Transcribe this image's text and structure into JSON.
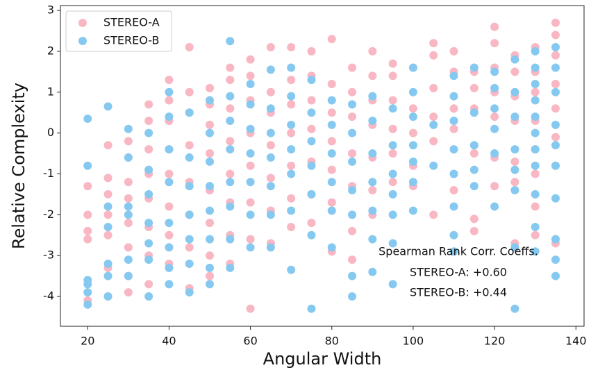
{
  "chart_data": {
    "type": "scatter",
    "x_label": "Angular Width",
    "y_label": "Relative Complexity",
    "xlim": [
      13.3,
      142
    ],
    "ylim": [
      -4.73,
      3.12
    ],
    "xticks": [
      20,
      40,
      60,
      80,
      100,
      120,
      140
    ],
    "yticks": [
      -4,
      -3,
      -2,
      -1,
      0,
      1,
      2,
      3
    ],
    "legend": "upper left",
    "annotations": [
      "Spearman Rank Corr. Coeffs.",
      "STEREO-A: +0.60",
      "STEREO-B: +0.44"
    ],
    "series": [
      {
        "name": "STEREO-A",
        "color": "#f9b6c3",
        "x": [
          20,
          20,
          20,
          20,
          20,
          25,
          25,
          25,
          25,
          25,
          25,
          25,
          30,
          30,
          30,
          30,
          30,
          30,
          30,
          30,
          35,
          35,
          35,
          35,
          35,
          35,
          35,
          35,
          40,
          40,
          40,
          40,
          40,
          40,
          40,
          40,
          45,
          45,
          45,
          45,
          45,
          45,
          45,
          45,
          50,
          50,
          50,
          50,
          50,
          50,
          50,
          50,
          55,
          55,
          55,
          55,
          55,
          55,
          55,
          55,
          60,
          60,
          60,
          60,
          60,
          60,
          60,
          60,
          65,
          65,
          65,
          65,
          65,
          65,
          65,
          70,
          70,
          70,
          70,
          70,
          70,
          70,
          75,
          75,
          75,
          75,
          75,
          75,
          75,
          80,
          80,
          80,
          80,
          80,
          80,
          80,
          85,
          85,
          85,
          85,
          85,
          85,
          85,
          90,
          90,
          90,
          90,
          90,
          90,
          90,
          95,
          95,
          95,
          95,
          95,
          95,
          100,
          100,
          100,
          100,
          100,
          105,
          105,
          105,
          105,
          105,
          105,
          110,
          110,
          110,
          110,
          110,
          110,
          115,
          115,
          115,
          115,
          115,
          115,
          120,
          120,
          120,
          120,
          120,
          120,
          120,
          125,
          125,
          125,
          125,
          125,
          125,
          125,
          130,
          130,
          130,
          130,
          130,
          130,
          130,
          130,
          135,
          135,
          135,
          135,
          135,
          135,
          135,
          135
        ],
        "values": [
          -1.3,
          -2.0,
          -2.4,
          -2.6,
          -4.1,
          -0.3,
          -1.1,
          -1.5,
          -2.0,
          -2.5,
          -3.3,
          -4.0,
          -0.2,
          -0.6,
          -1.2,
          -1.6,
          -2.2,
          -2.8,
          -3.5,
          -3.9,
          0.7,
          0.3,
          -0.4,
          -1.0,
          -1.6,
          -2.3,
          -3.0,
          -3.7,
          1.3,
          0.8,
          0.3,
          -0.4,
          -1.0,
          -1.8,
          -2.5,
          -3.2,
          2.1,
          1.0,
          0.5,
          -0.3,
          -1.2,
          -2.0,
          -2.8,
          -3.8,
          1.1,
          0.7,
          0.2,
          -0.5,
          -1.4,
          -2.2,
          -3.0,
          -3.5,
          1.6,
          1.3,
          0.6,
          -0.2,
          -1.0,
          -1.7,
          -2.5,
          -3.2,
          1.8,
          1.4,
          0.8,
          0.0,
          -0.8,
          -1.7,
          -2.6,
          -4.3,
          2.1,
          1.0,
          0.5,
          -0.3,
          -1.1,
          -1.9,
          -2.7,
          2.1,
          1.3,
          0.7,
          0.0,
          -0.8,
          -1.6,
          -2.3,
          2.0,
          1.4,
          0.8,
          0.1,
          -0.7,
          -1.5,
          -2.2,
          2.3,
          1.2,
          0.5,
          -0.2,
          -0.9,
          -1.7,
          -2.9,
          1.6,
          1.0,
          0.4,
          -0.5,
          -1.3,
          -2.4,
          -3.1,
          2.0,
          1.4,
          0.8,
          0.2,
          -0.6,
          -1.4,
          -2.0,
          1.7,
          1.4,
          0.8,
          0.1,
          -0.5,
          -1.2,
          1.6,
          0.6,
          0.0,
          -0.8,
          -1.3,
          2.2,
          1.9,
          1.1,
          0.4,
          -0.2,
          -2.0,
          2.0,
          1.5,
          0.6,
          0.1,
          -1.0,
          -1.4,
          1.5,
          1.1,
          0.6,
          -0.5,
          -2.1,
          -2.4,
          2.6,
          2.2,
          1.6,
          1.0,
          0.4,
          -0.6,
          -1.3,
          1.9,
          1.5,
          0.9,
          0.3,
          -0.7,
          -1.2,
          -2.7,
          2.1,
          1.5,
          1.0,
          0.3,
          -0.4,
          -1.0,
          -1.8,
          -2.5,
          2.7,
          2.4,
          1.9,
          1.2,
          0.6,
          -0.1,
          -0.8,
          -2.7
        ]
      },
      {
        "name": "STEREO-B",
        "color": "#86c9f0",
        "x": [
          20,
          20,
          20,
          20,
          20,
          20,
          25,
          25,
          25,
          25,
          25,
          25,
          30,
          30,
          30,
          30,
          30,
          30,
          35,
          35,
          35,
          35,
          35,
          35,
          35,
          40,
          40,
          40,
          40,
          40,
          40,
          40,
          40,
          45,
          45,
          45,
          45,
          45,
          45,
          45,
          50,
          50,
          50,
          50,
          50,
          50,
          50,
          50,
          55,
          55,
          55,
          55,
          55,
          55,
          55,
          55,
          60,
          60,
          60,
          60,
          60,
          60,
          60,
          65,
          65,
          65,
          65,
          65,
          65,
          65,
          70,
          70,
          70,
          70,
          70,
          70,
          70,
          75,
          75,
          75,
          75,
          75,
          75,
          75,
          80,
          80,
          80,
          80,
          80,
          80,
          85,
          85,
          85,
          85,
          85,
          85,
          85,
          90,
          90,
          90,
          90,
          90,
          90,
          90,
          95,
          95,
          95,
          95,
          95,
          95,
          95,
          100,
          100,
          100,
          100,
          100,
          100,
          100,
          105,
          105,
          110,
          110,
          110,
          110,
          110,
          110,
          110,
          110,
          115,
          115,
          115,
          115,
          115,
          120,
          120,
          120,
          120,
          120,
          120,
          125,
          125,
          125,
          125,
          125,
          125,
          125,
          125,
          130,
          130,
          130,
          130,
          130,
          130,
          130,
          130,
          130,
          130,
          130,
          135,
          135,
          135,
          135,
          135,
          135,
          135,
          135,
          135,
          135
        ],
        "values": [
          0.35,
          -0.8,
          -3.6,
          -3.7,
          -3.9,
          -4.2,
          0.65,
          -1.8,
          -2.3,
          -3.2,
          -3.5,
          -4.0,
          0.1,
          -0.6,
          -1.8,
          -2.0,
          -3.1,
          -3.5,
          0.0,
          -0.9,
          -1.5,
          -2.2,
          -2.7,
          -3.1,
          -4.0,
          1.0,
          0.4,
          -0.4,
          -1.2,
          -2.2,
          -2.8,
          -3.3,
          -3.7,
          0.5,
          -0.6,
          -1.3,
          -2.0,
          -2.6,
          -3.2,
          -3.9,
          0.8,
          0.0,
          -0.7,
          -1.3,
          -1.9,
          -2.6,
          -3.3,
          -3.7,
          2.25,
          0.9,
          0.3,
          -0.4,
          -1.2,
          -1.8,
          -2.6,
          -3.3,
          1.2,
          0.7,
          0.1,
          -0.5,
          -1.2,
          -2.0,
          -2.8,
          1.55,
          0.6,
          0.0,
          -0.6,
          -1.3,
          -2.0,
          -2.8,
          1.6,
          0.9,
          0.2,
          -0.4,
          -1.0,
          -1.9,
          -3.35,
          1.3,
          0.5,
          -0.2,
          -0.8,
          -1.5,
          -2.5,
          -4.3,
          0.8,
          0.2,
          -0.5,
          -1.2,
          -1.9,
          -2.8,
          0.7,
          0.0,
          -0.7,
          -1.4,
          -2.0,
          -3.5,
          -4.0,
          0.9,
          0.3,
          -0.5,
          -1.2,
          -1.9,
          -2.6,
          -3.4,
          0.6,
          -0.3,
          -1.0,
          -1.5,
          -2.0,
          -2.7,
          -3.7,
          1.6,
          1.0,
          0.4,
          -0.3,
          -0.7,
          -1.2,
          -1.9,
          0.2,
          -0.8,
          1.4,
          0.9,
          0.3,
          -0.4,
          -1.0,
          -1.8,
          -2.5,
          -2.9,
          1.6,
          0.5,
          -0.3,
          -0.9,
          -1.3,
          1.5,
          1.1,
          0.6,
          0.1,
          -0.5,
          -1.8,
          1.8,
          1.0,
          0.4,
          -0.4,
          -0.9,
          -1.4,
          -2.8,
          -4.3,
          2.0,
          1.6,
          1.2,
          0.8,
          0.4,
          0.0,
          -0.4,
          -0.8,
          -1.5,
          -2.3,
          -2.9,
          2.1,
          1.6,
          1.0,
          0.2,
          -0.3,
          -0.8,
          -1.6,
          -2.6,
          -3.1,
          -3.5
        ]
      }
    ]
  }
}
